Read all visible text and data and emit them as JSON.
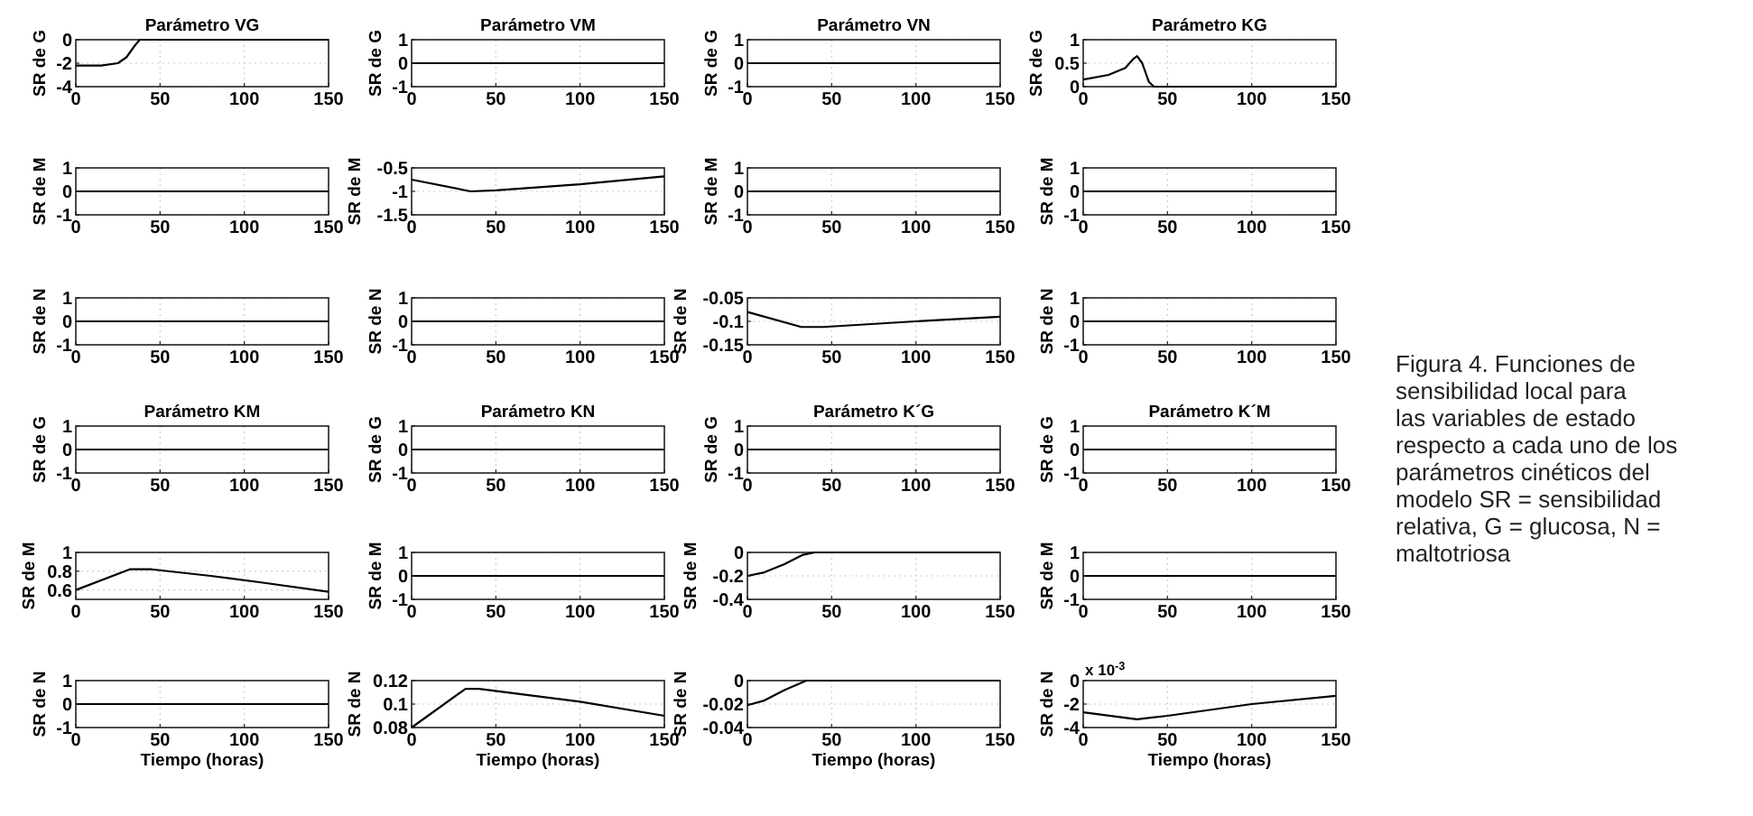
{
  "chart_data": [
    {
      "type": "line",
      "title": "Parámetro VG",
      "ylabel": "SR de G",
      "x": [
        0,
        15,
        25,
        30,
        35,
        38,
        150
      ],
      "values": [
        -2.2,
        -2.2,
        -2.0,
        -1.5,
        -0.5,
        0,
        0
      ],
      "color": "#000000",
      "xlim": [
        0,
        150
      ],
      "xticks": [
        0,
        50,
        100,
        150
      ],
      "ylim": [
        -4,
        0
      ],
      "yticks": [
        -4,
        -2,
        0
      ],
      "grid": true
    },
    {
      "type": "line",
      "title": "Parámetro VM",
      "ylabel": "SR de G",
      "x": [
        0,
        150
      ],
      "values": [
        0,
        0
      ],
      "color": "#000000",
      "xlim": [
        0,
        150
      ],
      "xticks": [
        0,
        50,
        100,
        150
      ],
      "ylim": [
        -1,
        1
      ],
      "yticks": [
        -1,
        0,
        1
      ],
      "grid": true
    },
    {
      "type": "line",
      "title": "Parámetro VN",
      "ylabel": "SR de G",
      "x": [
        0,
        150
      ],
      "values": [
        0,
        0
      ],
      "color": "#000000",
      "xlim": [
        0,
        150
      ],
      "xticks": [
        0,
        50,
        100,
        150
      ],
      "ylim": [
        -1,
        1
      ],
      "yticks": [
        -1,
        0,
        1
      ],
      "grid": true
    },
    {
      "type": "line",
      "title": "Parámetro KG",
      "ylabel": "SR de G",
      "x": [
        0,
        15,
        25,
        30,
        32,
        35,
        39,
        42,
        150
      ],
      "values": [
        0.15,
        0.25,
        0.4,
        0.6,
        0.65,
        0.5,
        0.1,
        0,
        0
      ],
      "color": "#000000",
      "xlim": [
        0,
        150
      ],
      "xticks": [
        0,
        50,
        100,
        150
      ],
      "ylim": [
        0,
        1
      ],
      "yticks": [
        0,
        0.5,
        1
      ],
      "grid": true
    },
    {
      "type": "line",
      "ylabel": "SR de M",
      "x": [
        0,
        150
      ],
      "values": [
        0,
        0
      ],
      "color": "#000000",
      "xlim": [
        0,
        150
      ],
      "xticks": [
        0,
        50,
        100,
        150
      ],
      "ylim": [
        -1,
        1
      ],
      "yticks": [
        -1,
        0,
        1
      ],
      "grid": true
    },
    {
      "type": "line",
      "ylabel": "SR de M",
      "x": [
        0,
        35,
        50,
        100,
        150
      ],
      "values": [
        -0.75,
        -1.0,
        -0.98,
        -0.85,
        -0.68
      ],
      "color": "#000000",
      "xlim": [
        0,
        150
      ],
      "xticks": [
        0,
        50,
        100,
        150
      ],
      "ylim": [
        -1.5,
        -0.5
      ],
      "yticks": [
        -1.5,
        -1,
        -0.5
      ],
      "grid": true
    },
    {
      "type": "line",
      "ylabel": "SR de M",
      "x": [
        0,
        150
      ],
      "values": [
        0,
        0
      ],
      "color": "#000000",
      "xlim": [
        0,
        150
      ],
      "xticks": [
        0,
        50,
        100,
        150
      ],
      "ylim": [
        -1,
        1
      ],
      "yticks": [
        -1,
        0,
        1
      ],
      "grid": true
    },
    {
      "type": "line",
      "ylabel": "SR de M",
      "x": [
        0,
        150
      ],
      "values": [
        0,
        0
      ],
      "color": "#000000",
      "xlim": [
        0,
        150
      ],
      "xticks": [
        0,
        50,
        100,
        150
      ],
      "ylim": [
        -1,
        1
      ],
      "yticks": [
        -1,
        0,
        1
      ],
      "grid": true
    },
    {
      "type": "line",
      "ylabel": "SR de N",
      "x": [
        0,
        150
      ],
      "values": [
        0,
        0
      ],
      "color": "#000000",
      "xlim": [
        0,
        150
      ],
      "xticks": [
        0,
        50,
        100,
        150
      ],
      "ylim": [
        -1,
        1
      ],
      "yticks": [
        -1,
        0,
        1
      ],
      "grid": true
    },
    {
      "type": "line",
      "ylabel": "SR de N",
      "x": [
        0,
        150
      ],
      "values": [
        0,
        0
      ],
      "color": "#000000",
      "xlim": [
        0,
        150
      ],
      "xticks": [
        0,
        50,
        100,
        150
      ],
      "ylim": [
        -1,
        1
      ],
      "yticks": [
        -1,
        0,
        1
      ],
      "grid": true
    },
    {
      "type": "line",
      "ylabel": "SR de N",
      "x": [
        0,
        32,
        45,
        100,
        150
      ],
      "values": [
        -0.08,
        -0.112,
        -0.112,
        -0.1,
        -0.09
      ],
      "color": "#000000",
      "xlim": [
        0,
        150
      ],
      "xticks": [
        0,
        50,
        100,
        150
      ],
      "ylim": [
        -0.15,
        -0.05
      ],
      "yticks": [
        -0.15,
        -0.1,
        -0.05
      ],
      "grid": true
    },
    {
      "type": "line",
      "ylabel": "SR de N",
      "x": [
        0,
        150
      ],
      "values": [
        0,
        0
      ],
      "color": "#000000",
      "xlim": [
        0,
        150
      ],
      "xticks": [
        0,
        50,
        100,
        150
      ],
      "ylim": [
        -1,
        1
      ],
      "yticks": [
        -1,
        0,
        1
      ],
      "grid": true
    },
    {
      "type": "line",
      "title": "Parámetro KM",
      "ylabel": "SR de G",
      "x": [
        0,
        150
      ],
      "values": [
        0,
        0
      ],
      "color": "#000000",
      "xlim": [
        0,
        150
      ],
      "xticks": [
        0,
        50,
        100,
        150
      ],
      "ylim": [
        -1,
        1
      ],
      "yticks": [
        -1,
        0,
        1
      ],
      "grid": true
    },
    {
      "type": "line",
      "title": "Parámetro KN",
      "ylabel": "SR de G",
      "x": [
        0,
        150
      ],
      "values": [
        0,
        0
      ],
      "color": "#000000",
      "xlim": [
        0,
        150
      ],
      "xticks": [
        0,
        50,
        100,
        150
      ],
      "ylim": [
        -1,
        1
      ],
      "yticks": [
        -1,
        0,
        1
      ],
      "grid": true
    },
    {
      "type": "line",
      "title": "Parámetro K´G",
      "ylabel": "SR de G",
      "x": [
        0,
        150
      ],
      "values": [
        0,
        0
      ],
      "color": "#000000",
      "xlim": [
        0,
        150
      ],
      "xticks": [
        0,
        50,
        100,
        150
      ],
      "ylim": [
        -1,
        1
      ],
      "yticks": [
        -1,
        0,
        1
      ],
      "grid": true
    },
    {
      "type": "line",
      "title": "Parámetro K´M",
      "ylabel": "SR de G",
      "x": [
        0,
        150
      ],
      "values": [
        0,
        0
      ],
      "color": "#000000",
      "xlim": [
        0,
        150
      ],
      "xticks": [
        0,
        50,
        100,
        150
      ],
      "ylim": [
        -1,
        1
      ],
      "yticks": [
        -1,
        0,
        1
      ],
      "grid": true
    },
    {
      "type": "line",
      "ylabel": "SR de M",
      "x": [
        0,
        32,
        45,
        80,
        110,
        150
      ],
      "values": [
        0.6,
        0.82,
        0.82,
        0.75,
        0.68,
        0.58
      ],
      "color": "#000000",
      "xlim": [
        0,
        150
      ],
      "xticks": [
        0,
        50,
        100,
        150
      ],
      "ylim": [
        0.5,
        1
      ],
      "yticks": [
        0.6,
        0.8,
        1
      ],
      "grid": true
    },
    {
      "type": "line",
      "ylabel": "SR de M",
      "x": [
        0,
        150
      ],
      "values": [
        0,
        0
      ],
      "color": "#000000",
      "xlim": [
        0,
        150
      ],
      "xticks": [
        0,
        50,
        100,
        150
      ],
      "ylim": [
        -1,
        1
      ],
      "yticks": [
        -1,
        0,
        1
      ],
      "grid": true
    },
    {
      "type": "line",
      "ylabel": "SR de M",
      "x": [
        0,
        10,
        22,
        33,
        40,
        150
      ],
      "values": [
        -0.2,
        -0.17,
        -0.1,
        -0.02,
        0,
        0
      ],
      "color": "#000000",
      "xlim": [
        0,
        150
      ],
      "xticks": [
        0,
        50,
        100,
        150
      ],
      "ylim": [
        -0.4,
        0
      ],
      "yticks": [
        -0.4,
        -0.2,
        0
      ],
      "grid": true
    },
    {
      "type": "line",
      "ylabel": "SR de M",
      "x": [
        0,
        150
      ],
      "values": [
        0,
        0
      ],
      "color": "#000000",
      "xlim": [
        0,
        150
      ],
      "xticks": [
        0,
        50,
        100,
        150
      ],
      "ylim": [
        -1,
        1
      ],
      "yticks": [
        -1,
        0,
        1
      ],
      "grid": true
    },
    {
      "type": "line",
      "ylabel": "SR de N",
      "xlabel": "Tiempo (horas)",
      "x": [
        0,
        150
      ],
      "values": [
        0,
        0
      ],
      "color": "#000000",
      "xlim": [
        0,
        150
      ],
      "xticks": [
        0,
        50,
        100,
        150
      ],
      "ylim": [
        -1,
        1
      ],
      "yticks": [
        -1,
        0,
        1
      ],
      "grid": true
    },
    {
      "type": "line",
      "ylabel": "SR de N",
      "xlabel": "Tiempo (horas)",
      "x": [
        0,
        32,
        40,
        100,
        150
      ],
      "values": [
        0.08,
        0.113,
        0.113,
        0.102,
        0.09
      ],
      "color": "#000000",
      "xlim": [
        0,
        150
      ],
      "xticks": [
        0,
        50,
        100,
        150
      ],
      "ylim": [
        0.08,
        0.12
      ],
      "yticks": [
        0.08,
        0.1,
        0.12
      ],
      "grid": true
    },
    {
      "type": "line",
      "ylabel": "SR de N",
      "xlabel": "Tiempo (horas)",
      "x": [
        0,
        10,
        22,
        35,
        150
      ],
      "values": [
        -0.021,
        -0.017,
        -0.008,
        0,
        0
      ],
      "color": "#000000",
      "xlim": [
        0,
        150
      ],
      "xticks": [
        0,
        50,
        100,
        150
      ],
      "ylim": [
        -0.04,
        0
      ],
      "yticks": [
        -0.04,
        -0.02,
        0
      ],
      "grid": true
    },
    {
      "type": "line",
      "ylabel": "SR de N",
      "xlabel": "Tiempo (horas)",
      "x": [
        0,
        32,
        50,
        100,
        150
      ],
      "values": [
        -2.7,
        -3.3,
        -3.0,
        -2.0,
        -1.3
      ],
      "color": "#000000",
      "xlim": [
        0,
        150
      ],
      "xticks": [
        0,
        50,
        100,
        150
      ],
      "ylim": [
        -4,
        0
      ],
      "yticks": [
        -4,
        -2,
        0
      ],
      "annotations": [
        "x 10$^{-3}$"
      ],
      "grid": true
    },
    {
      "type": "other",
      "annotations": [
        "Figura 4. Funciones de sensibilidad local para las variables de estado respecto a cada uno de los parámetros cinéticos del modelo SR = sensibilidad relativa, G = glucosa, N = maltotriosa"
      ]
    }
  ]
}
